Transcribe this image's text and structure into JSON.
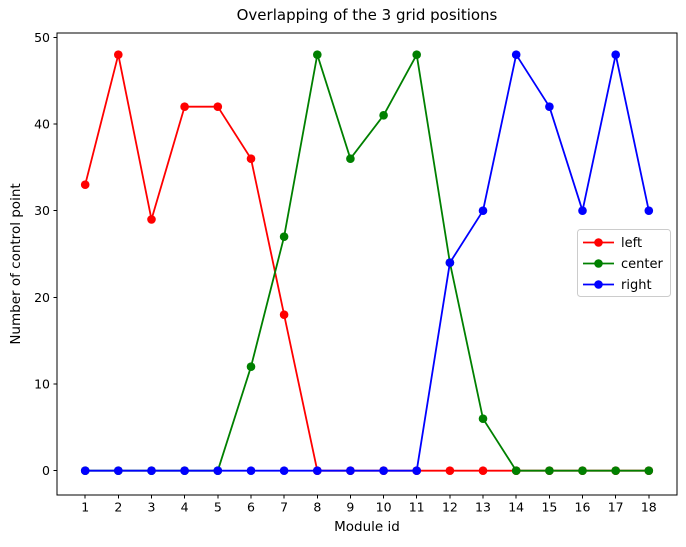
{
  "title": "Overlapping of the 3 grid positions",
  "colors": {
    "left_series": "#ff0000",
    "center_series": "#008000",
    "right_series": "#0000ff",
    "spine": "#000000",
    "tick_text": "#000000",
    "legend_border": "#cccccc",
    "legend_background": "#ffffff",
    "figure_background": "#ffffff"
  },
  "chart_data": {
    "type": "line",
    "title": "Overlapping of the 3 grid positions",
    "xlabel": "Module id",
    "ylabel": "Number of control point",
    "x": [
      1,
      2,
      3,
      4,
      5,
      6,
      7,
      8,
      9,
      10,
      11,
      12,
      13,
      14,
      15,
      16,
      17,
      18
    ],
    "series": [
      {
        "name": "left",
        "color": "#ff0000",
        "values": [
          33,
          48,
          29,
          42,
          42,
          36,
          18,
          0,
          0,
          0,
          0,
          0,
          0,
          0,
          0,
          0,
          0,
          0
        ]
      },
      {
        "name": "center",
        "color": "#008000",
        "values": [
          0,
          0,
          0,
          0,
          0,
          12,
          27,
          48,
          36,
          41,
          48,
          24,
          6,
          0,
          0,
          0,
          0,
          0
        ]
      },
      {
        "name": "right",
        "color": "#0000ff",
        "values": [
          0,
          0,
          0,
          0,
          0,
          0,
          0,
          0,
          0,
          0,
          0,
          24,
          30,
          48,
          42,
          30,
          48,
          30
        ]
      }
    ],
    "xticks": [
      1,
      2,
      3,
      4,
      5,
      6,
      7,
      8,
      9,
      10,
      11,
      12,
      13,
      14,
      15,
      16,
      17,
      18
    ],
    "yticks": [
      0,
      10,
      20,
      30,
      40,
      50
    ],
    "xlim": [
      0.15,
      18.85
    ],
    "ylim": [
      -2.8,
      50.5
    ],
    "grid": false,
    "marker": "o",
    "legend": {
      "position": "center right",
      "entries": [
        "left",
        "center",
        "right"
      ]
    }
  }
}
